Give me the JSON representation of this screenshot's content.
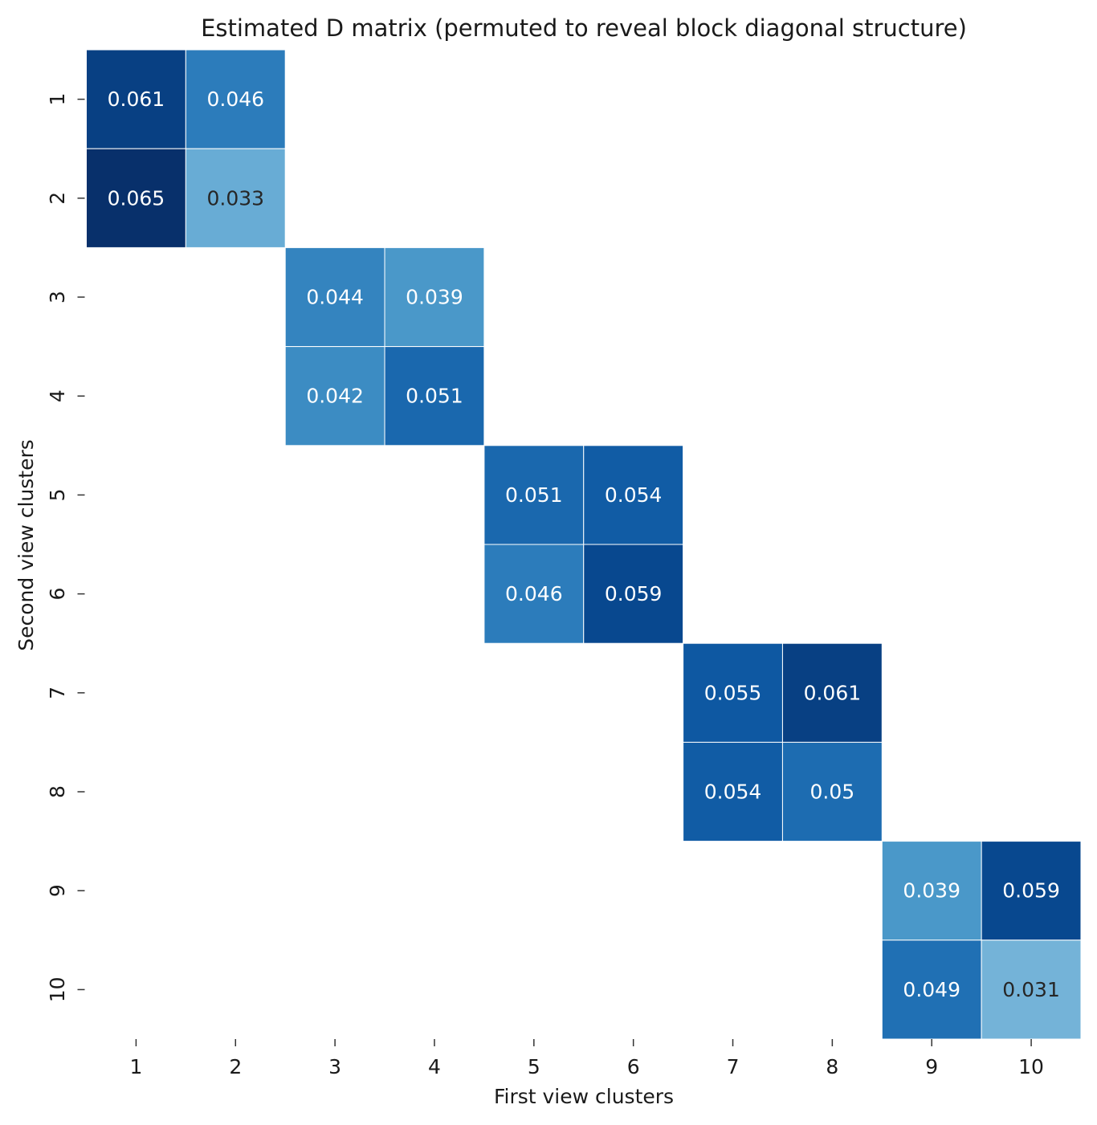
{
  "chart_data": {
    "type": "heatmap",
    "title": "Estimated D matrix (permuted to reveal block diagonal structure)",
    "xlabel": "First view clusters",
    "ylabel": "Second view clusters",
    "x_categories": [
      "1",
      "2",
      "3",
      "4",
      "5",
      "6",
      "7",
      "8",
      "9",
      "10"
    ],
    "y_categories": [
      "1",
      "2",
      "3",
      "4",
      "5",
      "6",
      "7",
      "8",
      "9",
      "10"
    ],
    "cells": [
      {
        "row": 1,
        "col": 1,
        "value": 0.061,
        "label": "0.061"
      },
      {
        "row": 1,
        "col": 2,
        "value": 0.046,
        "label": "0.046"
      },
      {
        "row": 2,
        "col": 1,
        "value": 0.065,
        "label": "0.065"
      },
      {
        "row": 2,
        "col": 2,
        "value": 0.033,
        "label": "0.033"
      },
      {
        "row": 3,
        "col": 3,
        "value": 0.044,
        "label": "0.044"
      },
      {
        "row": 3,
        "col": 4,
        "value": 0.039,
        "label": "0.039"
      },
      {
        "row": 4,
        "col": 3,
        "value": 0.042,
        "label": "0.042"
      },
      {
        "row": 4,
        "col": 4,
        "value": 0.051,
        "label": "0.051"
      },
      {
        "row": 5,
        "col": 5,
        "value": 0.051,
        "label": "0.051"
      },
      {
        "row": 5,
        "col": 6,
        "value": 0.054,
        "label": "0.054"
      },
      {
        "row": 6,
        "col": 5,
        "value": 0.046,
        "label": "0.046"
      },
      {
        "row": 6,
        "col": 6,
        "value": 0.059,
        "label": "0.059"
      },
      {
        "row": 7,
        "col": 7,
        "value": 0.055,
        "label": "0.055"
      },
      {
        "row": 7,
        "col": 8,
        "value": 0.061,
        "label": "0.061"
      },
      {
        "row": 8,
        "col": 7,
        "value": 0.054,
        "label": "0.054"
      },
      {
        "row": 8,
        "col": 8,
        "value": 0.05,
        "label": "0.05"
      },
      {
        "row": 9,
        "col": 9,
        "value": 0.039,
        "label": "0.039"
      },
      {
        "row": 9,
        "col": 10,
        "value": 0.059,
        "label": "0.059"
      },
      {
        "row": 10,
        "col": 9,
        "value": 0.049,
        "label": "0.049"
      },
      {
        "row": 10,
        "col": 10,
        "value": 0.031,
        "label": "0.031"
      }
    ],
    "colormap": "Blues",
    "color_range": [
      0.0,
      0.065
    ],
    "colorbar": false,
    "grid": false,
    "colors": {
      "light_text": "#ffffff",
      "dark_text": "#262626",
      "cell_border": "#ffffff"
    }
  }
}
